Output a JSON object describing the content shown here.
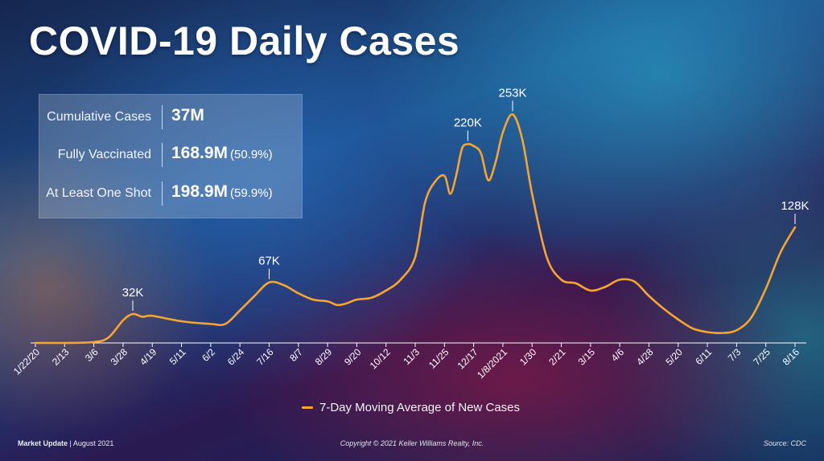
{
  "slide": {
    "title": "COVID-19 Daily Cases"
  },
  "stats": [
    {
      "label": "Cumulative Cases",
      "value": "37M",
      "pct": ""
    },
    {
      "label": "Fully Vaccinated",
      "value": "168.9M",
      "pct": "(50.9%)"
    },
    {
      "label": "At Least One Shot",
      "value": "198.9M",
      "pct": "(59.9%)"
    }
  ],
  "footer": {
    "left_bold": "Market Update",
    "left_sep": "|",
    "left_date": "August 2021",
    "center": "Copyright © 2021 Keller Williams Realty, Inc.",
    "right": "Source: CDC"
  },
  "colors": {
    "line": "#f7a531",
    "axis": "#ffffff"
  },
  "chart_data": {
    "type": "line",
    "title": "COVID-19 Daily Cases",
    "xlabel": "",
    "ylabel": "",
    "ylim": [
      0,
      280000
    ],
    "grid": false,
    "legend": "bottom",
    "series": [
      {
        "name": "7-Day Moving Average of New Cases",
        "points": [
          [
            "1/22/20",
            0
          ],
          [
            "2/13",
            0
          ],
          [
            "3/6",
            1000
          ],
          [
            "3/17",
            6000
          ],
          [
            "3/28",
            25000
          ],
          [
            "4/3",
            32000
          ],
          [
            "4/10",
            29000
          ],
          [
            "4/19",
            30000
          ],
          [
            "5/11",
            24000
          ],
          [
            "6/2",
            21000
          ],
          [
            "6/10",
            21000
          ],
          [
            "6/24",
            36000
          ],
          [
            "7/5",
            52000
          ],
          [
            "7/16",
            67000
          ],
          [
            "7/24",
            64000
          ],
          [
            "8/7",
            55000
          ],
          [
            "8/20",
            48000
          ],
          [
            "8/29",
            46000
          ],
          [
            "9/3",
            42000
          ],
          [
            "9/10",
            44000
          ],
          [
            "9/20",
            48000
          ],
          [
            "10/1",
            50000
          ],
          [
            "10/12",
            58000
          ],
          [
            "10/22",
            70000
          ],
          [
            "11/3",
            95000
          ],
          [
            "11/12",
            155000
          ],
          [
            "11/20",
            178000
          ],
          [
            "11/25",
            185000
          ],
          [
            "11/28",
            165000
          ],
          [
            "12/3",
            185000
          ],
          [
            "12/8",
            215000
          ],
          [
            "12/12",
            220000
          ],
          [
            "12/17",
            218000
          ],
          [
            "12/22",
            210000
          ],
          [
            "12/25",
            180000
          ],
          [
            "12/30",
            200000
          ],
          [
            "1/8/2021",
            233000
          ],
          [
            "1/11",
            253000
          ],
          [
            "1/17",
            225000
          ],
          [
            "1/30",
            165000
          ],
          [
            "2/12",
            95000
          ],
          [
            "2/21",
            70000
          ],
          [
            "3/1",
            66000
          ],
          [
            "3/15",
            58000
          ],
          [
            "3/25",
            62000
          ],
          [
            "4/6",
            70000
          ],
          [
            "4/15",
            68000
          ],
          [
            "4/28",
            52000
          ],
          [
            "5/10",
            38000
          ],
          [
            "5/20",
            26000
          ],
          [
            "6/1",
            16000
          ],
          [
            "6/11",
            12000
          ],
          [
            "6/20",
            11000
          ],
          [
            "7/3",
            14000
          ],
          [
            "7/14",
            28000
          ],
          [
            "7/25",
            60000
          ],
          [
            "8/5",
            100000
          ],
          [
            "8/16",
            128000
          ]
        ]
      }
    ],
    "x_ticks": [
      "1/22/20",
      "2/13",
      "3/6",
      "3/28",
      "4/19",
      "5/11",
      "6/2",
      "6/24",
      "7/16",
      "8/7",
      "8/29",
      "9/20",
      "10/12",
      "11/3",
      "11/25",
      "12/17",
      "1/8/2021",
      "1/30",
      "2/21",
      "3/15",
      "4/6",
      "4/28",
      "5/20",
      "6/11",
      "7/3",
      "7/25",
      "8/16"
    ],
    "annotations": [
      {
        "x": "4/3",
        "label": "32K"
      },
      {
        "x": "7/16",
        "label": "67K"
      },
      {
        "x": "12/12",
        "label": "220K"
      },
      {
        "x": "1/11",
        "label": "253K"
      },
      {
        "x": "8/16",
        "label": "128K"
      }
    ]
  }
}
